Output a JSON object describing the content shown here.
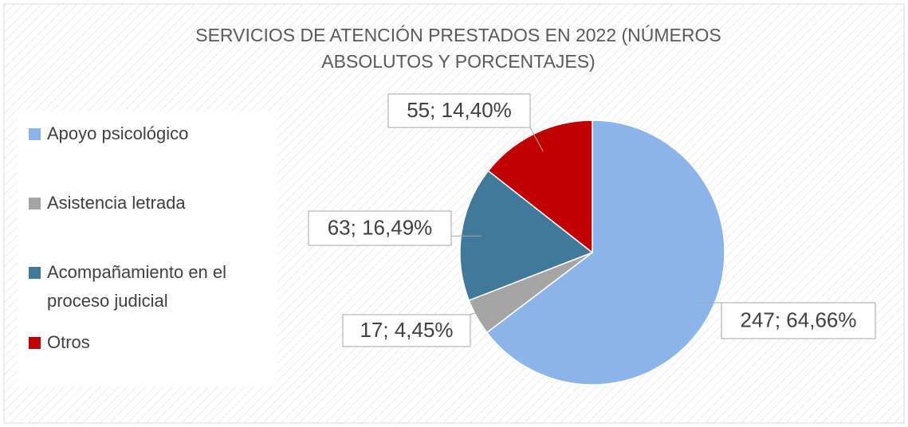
{
  "chart_data": {
    "type": "pie",
    "title": "SERVICIOS DE ATENCIÓN PRESTADOS EN 2022 (NÚMEROS ABSOLUTOS Y PORCENTAJES)",
    "categories": [
      "Apoyo psicológico",
      "Asistencia letrada",
      "Acompañamiento en el proceso judicial",
      "Otros"
    ],
    "values": [
      247,
      17,
      63,
      55
    ],
    "value_labels": [
      "247; 64,66%",
      "17; 4,45%",
      "63; 16,49%",
      "55; 14,40%"
    ],
    "colors": [
      "#8ab4ea",
      "#a5a5a5",
      "#41799a",
      "#c00000"
    ],
    "legend": "left"
  }
}
